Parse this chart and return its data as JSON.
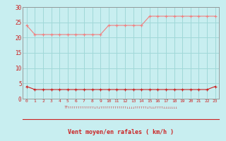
{
  "hours": [
    0,
    1,
    2,
    3,
    4,
    5,
    6,
    7,
    8,
    9,
    10,
    11,
    12,
    13,
    14,
    15,
    16,
    17,
    18,
    19,
    20,
    21,
    22,
    23
  ],
  "rafales": [
    24,
    21,
    21,
    21,
    21,
    21,
    21,
    21,
    21,
    21,
    24,
    24,
    24,
    24,
    24,
    27,
    27,
    27,
    27,
    27,
    27,
    27,
    27,
    27
  ],
  "moyen": [
    4,
    3,
    3,
    3,
    3,
    3,
    3,
    3,
    3,
    3,
    3,
    3,
    3,
    3,
    3,
    3,
    3,
    3,
    3,
    3,
    3,
    3,
    3,
    4
  ],
  "color_rafales": "#f08080",
  "color_moyen": "#cc2222",
  "bg_color": "#c8eef0",
  "grid_color": "#a0d8d8",
  "xlabel": "Vent moyen/en rafales ( km/h )",
  "xlabel_color": "#cc2222",
  "tick_label_color": "#cc2222",
  "ylim": [
    0,
    30
  ],
  "yticks": [
    0,
    5,
    10,
    15,
    20,
    25,
    30
  ],
  "marker": "+",
  "marker_size": 3,
  "line_width": 0.8
}
